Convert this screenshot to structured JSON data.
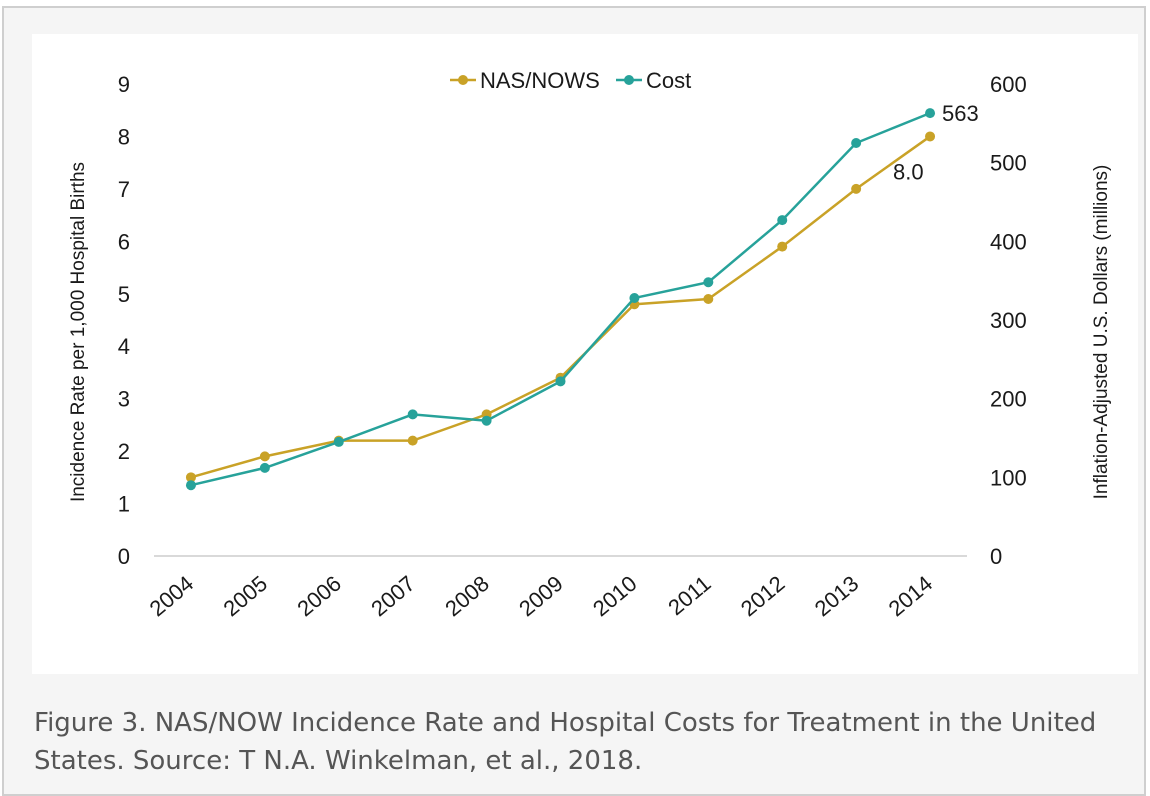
{
  "figure": {
    "caption": "Figure 3. NAS/NOW Incidence Rate and Hospital Costs for Treatment in the United States. Source: T N.A. Winkelman, et al., 2018."
  },
  "chart_data": {
    "type": "line",
    "title": "",
    "xlabel": "",
    "ylabel": "Incidence Rate per 1,000 Hospital Births",
    "y2label": "Inflation-Adjusted U.S. Dollars (millions)",
    "x": [
      "2004",
      "2005",
      "2006",
      "2007",
      "2008",
      "2009",
      "2010",
      "2011",
      "2012",
      "2013",
      "2014"
    ],
    "ylim": [
      0,
      9
    ],
    "y2lim": [
      0,
      600
    ],
    "yticks": [
      "0",
      "1",
      "2",
      "3",
      "4",
      "5",
      "6",
      "7",
      "8",
      "9"
    ],
    "y2ticks": [
      "0",
      "100",
      "200",
      "300",
      "400",
      "500",
      "600"
    ],
    "grid": false,
    "legend_position": "top",
    "series": [
      {
        "name": "NAS/NOWS",
        "axis": "left",
        "color": "#C9A227",
        "values": [
          1.5,
          1.9,
          2.2,
          2.2,
          2.7,
          3.4,
          4.8,
          4.9,
          5.9,
          7.0,
          8.0
        ],
        "end_label": "8.0"
      },
      {
        "name": "Cost",
        "axis": "right",
        "color": "#27A29A",
        "values": [
          90,
          112,
          145,
          180,
          172,
          222,
          328,
          348,
          427,
          525,
          563
        ],
        "end_label": "563"
      }
    ]
  }
}
